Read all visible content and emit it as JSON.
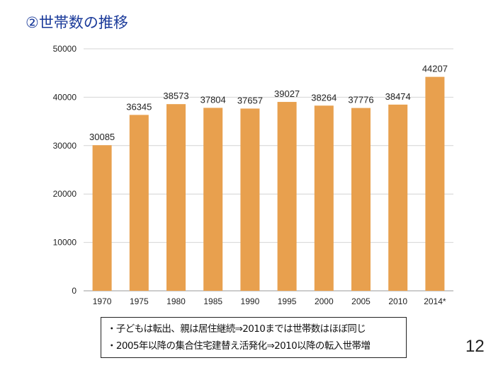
{
  "title": "②世帯数の推移",
  "chart_data": {
    "type": "bar",
    "title": "",
    "categories": [
      "1970",
      "1975",
      "1980",
      "1985",
      "1990",
      "1995",
      "2000",
      "2005",
      "2010",
      "2014*"
    ],
    "values": [
      30085,
      36345,
      38573,
      37804,
      37657,
      39027,
      38264,
      37776,
      38474,
      44207
    ],
    "ylim": [
      0,
      50000
    ],
    "yticks": [
      0,
      10000,
      20000,
      30000,
      40000,
      50000
    ],
    "grid": true,
    "bar_color": "#E8A04E"
  },
  "notes": [
    "・子どもは転出、親は居住継続⇒2010までは世帯数はほぼ同じ",
    "・2005年以降の集合住宅建替え活発化⇒2010以降の転入世帯増"
  ],
  "page_number": "12"
}
